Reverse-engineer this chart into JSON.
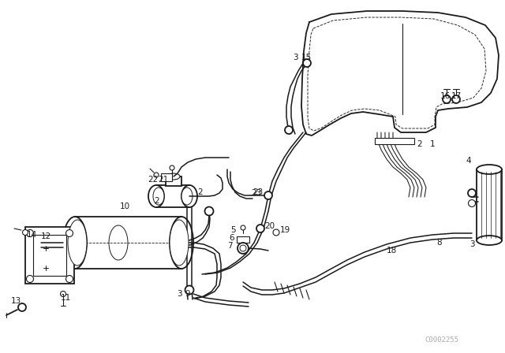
{
  "bg_color": "#ffffff",
  "line_color": "#1a1a1a",
  "fig_width": 6.4,
  "fig_height": 4.48,
  "dpi": 100,
  "watermark": "C0002255"
}
